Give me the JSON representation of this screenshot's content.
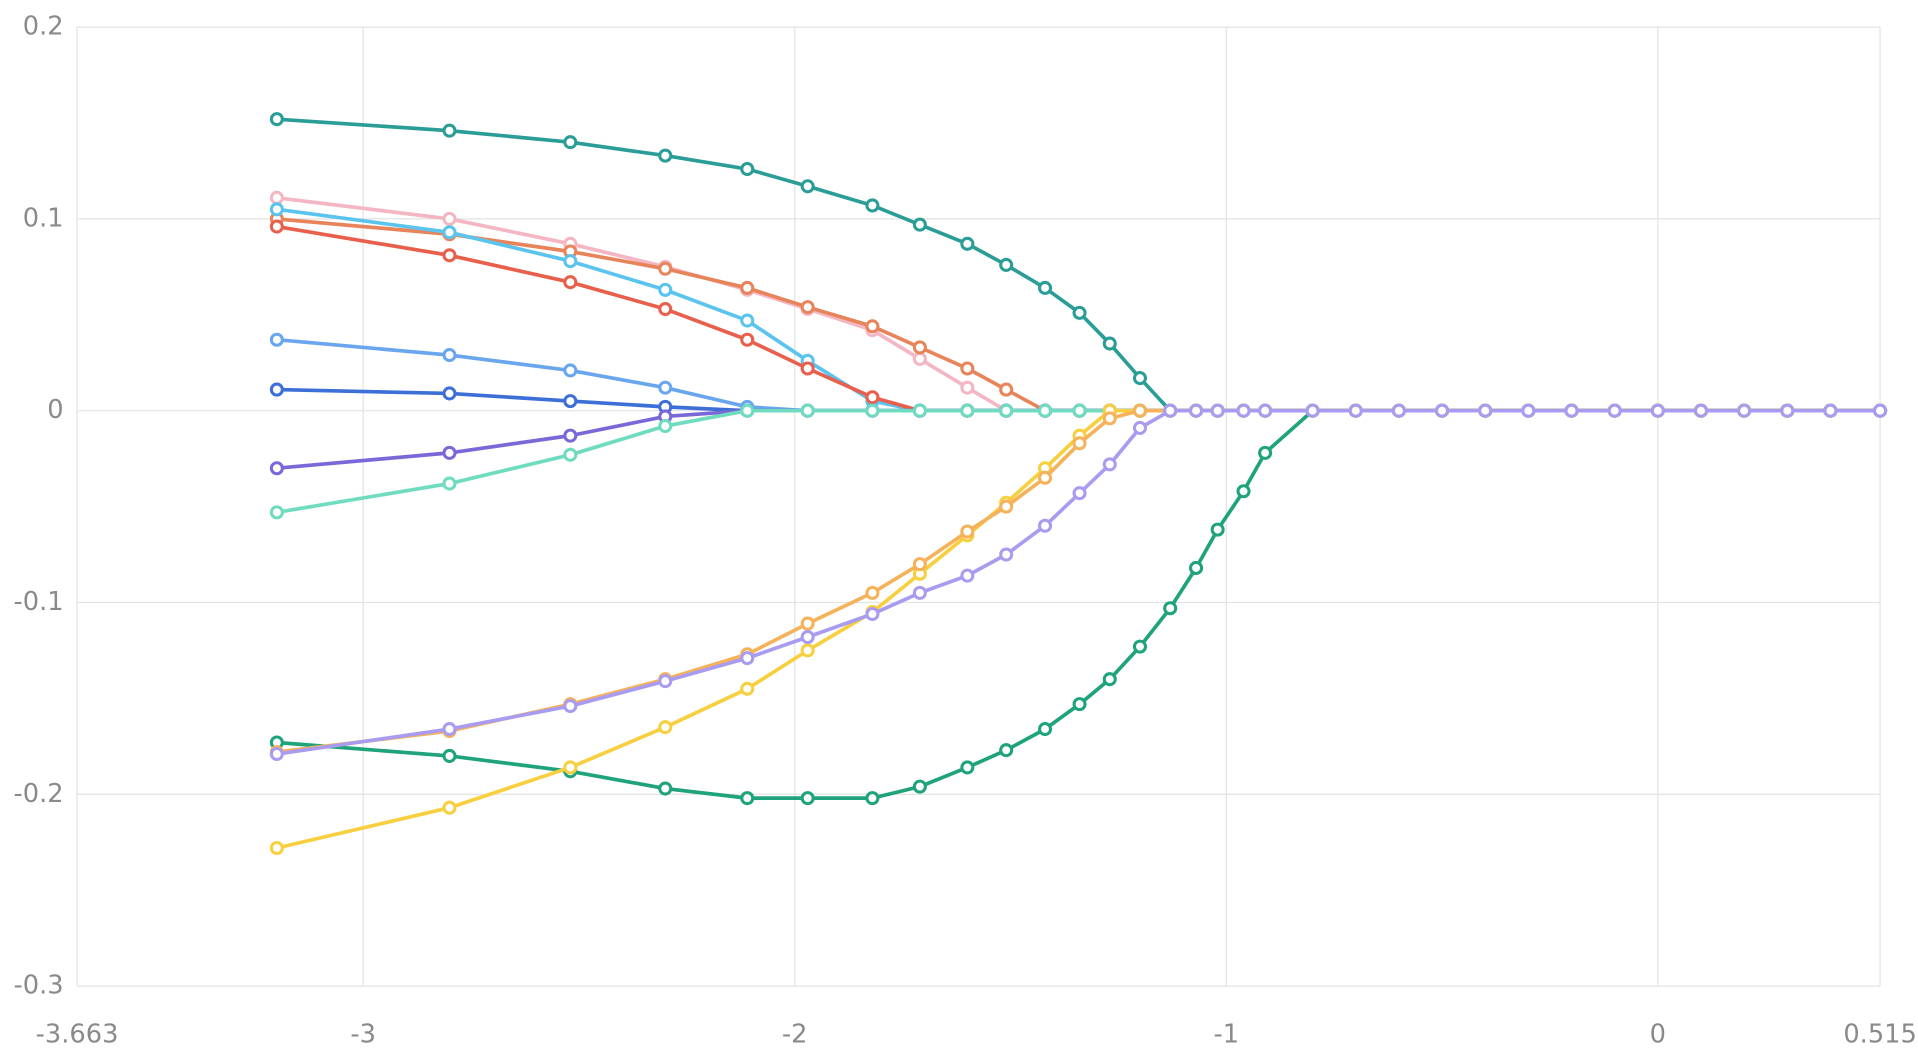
{
  "chart_data": {
    "type": "line",
    "x": [
      -3.2,
      -2.8,
      -2.52,
      -2.3,
      -2.11,
      -1.97,
      -1.82,
      -1.71,
      -1.6,
      -1.51,
      -1.42,
      -1.34,
      -1.27,
      -1.2,
      -1.13,
      -1.07,
      -1.02,
      -0.96,
      -0.91,
      -0.8,
      -0.7,
      -0.6,
      -0.5,
      -0.4,
      -0.3,
      -0.2,
      -0.1,
      0,
      0.1,
      0.2,
      0.3,
      0.4,
      0.515
    ],
    "xlim": [
      -3.663,
      0.515
    ],
    "xticks": [
      -3.663,
      -3,
      -2,
      -1,
      0,
      0.515
    ],
    "ylim": [
      -0.3,
      0.2
    ],
    "yticks": [
      0.2,
      0.1,
      0,
      -0.1,
      -0.2,
      -0.3
    ],
    "grid": true,
    "series": [
      {
        "color": "#2a9d96",
        "values": [
          0.152,
          0.146,
          0.14,
          0.133,
          0.126,
          0.117,
          0.107,
          0.097,
          0.087,
          0.076,
          0.064,
          0.051,
          0.035,
          0.017,
          0,
          0,
          0,
          0,
          0,
          0,
          0,
          0,
          0,
          0,
          0,
          0,
          0,
          0,
          0,
          0,
          0,
          0,
          0
        ]
      },
      {
        "color": "#f4b6c2",
        "values": [
          0.111,
          0.1,
          0.087,
          0.075,
          0.063,
          0.053,
          0.042,
          0.027,
          0.012,
          0,
          0,
          0,
          0,
          0,
          0,
          0,
          0,
          0,
          0,
          0,
          0,
          0,
          0,
          0,
          0,
          0,
          0,
          0,
          0,
          0,
          0,
          0,
          0
        ]
      },
      {
        "color": "#e8845a",
        "values": [
          0.1,
          0.092,
          0.083,
          0.074,
          0.064,
          0.054,
          0.044,
          0.033,
          0.022,
          0.011,
          0,
          0,
          0,
          0,
          0,
          0,
          0,
          0,
          0,
          0,
          0,
          0,
          0,
          0,
          0,
          0,
          0,
          0,
          0,
          0,
          0,
          0,
          0
        ]
      },
      {
        "color": "#5bc4ee",
        "values": [
          0.105,
          0.093,
          0.078,
          0.063,
          0.047,
          0.026,
          0.005,
          0,
          0,
          0,
          0,
          0,
          0,
          0,
          0,
          0,
          0,
          0,
          0,
          0,
          0,
          0,
          0,
          0,
          0,
          0,
          0,
          0,
          0,
          0,
          0,
          0,
          0
        ]
      },
      {
        "color": "#e8604c",
        "values": [
          0.096,
          0.081,
          0.067,
          0.053,
          0.037,
          0.022,
          0.007,
          0,
          0,
          0,
          0,
          0,
          0,
          0,
          0,
          0,
          0,
          0,
          0,
          0,
          0,
          0,
          0,
          0,
          0,
          0,
          0,
          0,
          0,
          0,
          0,
          0,
          0
        ]
      },
      {
        "color": "#6aa6ee",
        "values": [
          0.037,
          0.029,
          0.021,
          0.012,
          0.002,
          0,
          0,
          0,
          0,
          0,
          0,
          0,
          0,
          0,
          0,
          0,
          0,
          0,
          0,
          0,
          0,
          0,
          0,
          0,
          0,
          0,
          0,
          0,
          0,
          0,
          0,
          0,
          0
        ]
      },
      {
        "color": "#3c6fd8",
        "values": [
          0.011,
          0.009,
          0.005,
          0.002,
          0,
          0,
          0,
          0,
          0,
          0,
          0,
          0,
          0,
          0,
          0,
          0,
          0,
          0,
          0,
          0,
          0,
          0,
          0,
          0,
          0,
          0,
          0,
          0,
          0,
          0,
          0,
          0,
          0
        ]
      },
      {
        "color": "#7b68d8",
        "values": [
          -0.03,
          -0.022,
          -0.013,
          -0.003,
          0,
          0,
          0,
          0,
          0,
          0,
          0,
          0,
          0,
          0,
          0,
          0,
          0,
          0,
          0,
          0,
          0,
          0,
          0,
          0,
          0,
          0,
          0,
          0,
          0,
          0,
          0,
          0,
          0
        ]
      },
      {
        "color": "#6fdcc0",
        "values": [
          -0.053,
          -0.038,
          -0.023,
          -0.008,
          0,
          0,
          0,
          0,
          0,
          0,
          0,
          0,
          0,
          0,
          0,
          0,
          0,
          0,
          0,
          0,
          0,
          0,
          0,
          0,
          0,
          0,
          0,
          0,
          0,
          0,
          0,
          0,
          0
        ]
      },
      {
        "color": "#1fa37a",
        "values": [
          -0.173,
          -0.18,
          -0.188,
          -0.197,
          -0.202,
          -0.202,
          -0.202,
          -0.196,
          -0.186,
          -0.177,
          -0.166,
          -0.153,
          -0.14,
          -0.123,
          -0.103,
          -0.082,
          -0.062,
          -0.042,
          -0.022,
          0,
          0,
          0,
          0,
          0,
          0,
          0,
          0,
          0,
          0,
          0,
          0,
          0,
          0
        ]
      },
      {
        "color": "#f7cf3f",
        "values": [
          -0.228,
          -0.207,
          -0.186,
          -0.165,
          -0.145,
          -0.125,
          -0.105,
          -0.085,
          -0.065,
          -0.048,
          -0.03,
          -0.013,
          0,
          0,
          0,
          0,
          0,
          0,
          0,
          0,
          0,
          0,
          0,
          0,
          0,
          0,
          0,
          0,
          0,
          0,
          0,
          0,
          0
        ]
      },
      {
        "color": "#f5b25a",
        "values": [
          -0.178,
          -0.167,
          -0.153,
          -0.14,
          -0.127,
          -0.111,
          -0.095,
          -0.08,
          -0.063,
          -0.05,
          -0.035,
          -0.017,
          -0.004,
          0,
          0,
          0,
          0,
          0,
          0,
          0,
          0,
          0,
          0,
          0,
          0,
          0,
          0,
          0,
          0,
          0,
          0,
          0,
          0
        ]
      },
      {
        "color": "#a99cf0",
        "values": [
          -0.179,
          -0.166,
          -0.154,
          -0.141,
          -0.129,
          -0.118,
          -0.106,
          -0.095,
          -0.086,
          -0.075,
          -0.06,
          -0.043,
          -0.028,
          -0.009,
          0,
          0,
          0,
          0,
          0,
          0,
          0,
          0,
          0,
          0,
          0,
          0,
          0,
          0,
          0,
          0,
          0,
          0,
          0
        ]
      }
    ]
  }
}
